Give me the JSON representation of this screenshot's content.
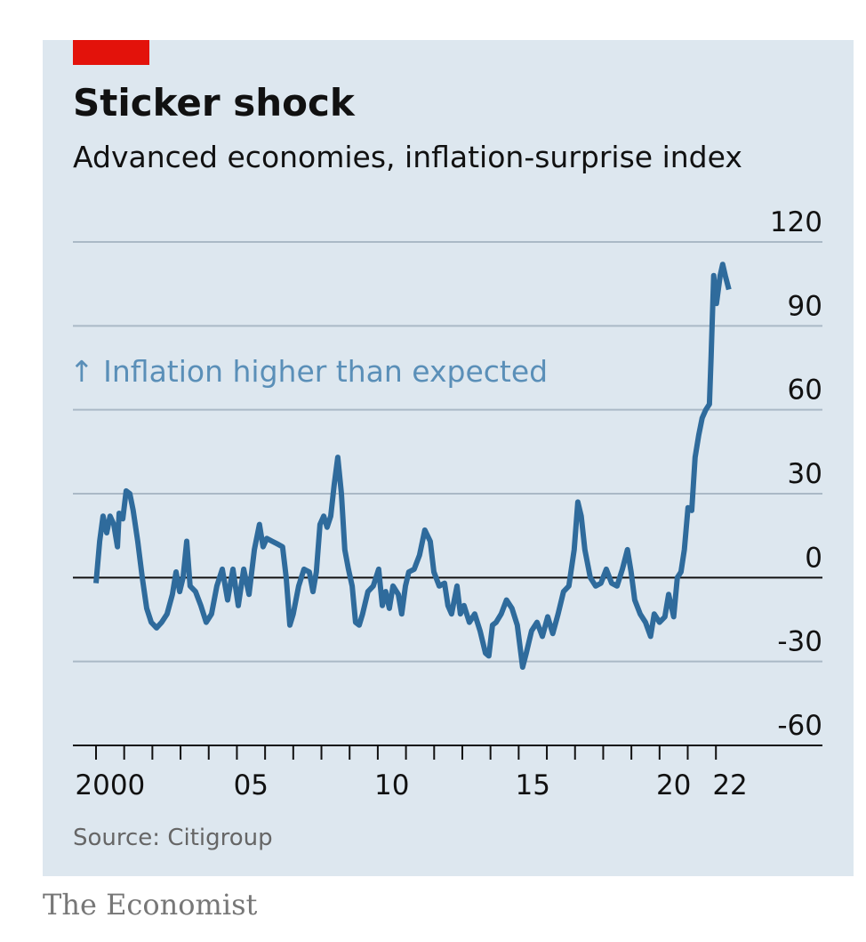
{
  "chart_data": {
    "type": "line",
    "title": "Sticker shock",
    "subtitle": "Advanced economies, inflation-surprise index",
    "annotation": "↑ Inflation higher than expected",
    "source": "Source: Citigroup",
    "footer": "The Economist",
    "xlim": [
      1999.18,
      2025.78
    ],
    "xticks": [
      {
        "value": 2000,
        "label": "2000"
      },
      {
        "value": 2001,
        "label": null
      },
      {
        "value": 2002,
        "label": null
      },
      {
        "value": 2003,
        "label": null
      },
      {
        "value": 2004,
        "label": null
      },
      {
        "value": 2005,
        "label": "05"
      },
      {
        "value": 2006,
        "label": null
      },
      {
        "value": 2007,
        "label": null
      },
      {
        "value": 2008,
        "label": null
      },
      {
        "value": 2009,
        "label": null
      },
      {
        "value": 2010,
        "label": "10"
      },
      {
        "value": 2011,
        "label": null
      },
      {
        "value": 2012,
        "label": null
      },
      {
        "value": 2013,
        "label": null
      },
      {
        "value": 2014,
        "label": null
      },
      {
        "value": 2015,
        "label": "15"
      },
      {
        "value": 2016,
        "label": null
      },
      {
        "value": 2017,
        "label": null
      },
      {
        "value": 2018,
        "label": null
      },
      {
        "value": 2019,
        "label": null
      },
      {
        "value": 2020,
        "label": "20"
      },
      {
        "value": 2021,
        "label": null
      },
      {
        "value": 2022,
        "label": "22"
      }
    ],
    "ylim": [
      -60,
      120
    ],
    "yticks": [
      -60,
      -30,
      0,
      30,
      60,
      90,
      120
    ],
    "grid": true,
    "x": [
      2000.0,
      2000.13,
      2000.25,
      2000.38,
      2000.5,
      2000.63,
      2000.76,
      2000.82,
      2000.95,
      2001.07,
      2001.2,
      2001.32,
      2001.48,
      2001.64,
      2001.8,
      2001.96,
      2002.15,
      2002.33,
      2002.52,
      2002.71,
      2002.84,
      2002.97,
      2003.09,
      2003.22,
      2003.34,
      2003.53,
      2003.72,
      2003.91,
      2004.1,
      2004.29,
      2004.48,
      2004.67,
      2004.86,
      2005.05,
      2005.24,
      2005.43,
      2005.62,
      2005.8,
      2005.93,
      2006.06,
      2006.25,
      2006.44,
      2006.62,
      2006.75,
      2006.88,
      2007.0,
      2007.19,
      2007.38,
      2007.57,
      2007.7,
      2007.82,
      2007.95,
      2008.08,
      2008.2,
      2008.33,
      2008.45,
      2008.58,
      2008.71,
      2008.83,
      2008.96,
      2009.09,
      2009.21,
      2009.34,
      2009.46,
      2009.65,
      2009.84,
      2010.03,
      2010.16,
      2010.28,
      2010.41,
      2010.54,
      2010.73,
      2010.85,
      2010.98,
      2011.1,
      2011.29,
      2011.48,
      2011.67,
      2011.86,
      2011.99,
      2012.18,
      2012.37,
      2012.49,
      2012.62,
      2012.81,
      2012.93,
      2013.06,
      2013.25,
      2013.44,
      2013.63,
      2013.82,
      2013.94,
      2014.07,
      2014.2,
      2014.38,
      2014.57,
      2014.76,
      2014.95,
      2015.14,
      2015.27,
      2015.46,
      2015.65,
      2015.84,
      2016.03,
      2016.21,
      2016.4,
      2016.59,
      2016.78,
      2016.97,
      2017.1,
      2017.22,
      2017.35,
      2017.54,
      2017.73,
      2017.92,
      2018.11,
      2018.3,
      2018.49,
      2018.68,
      2018.86,
      2018.99,
      2019.12,
      2019.31,
      2019.5,
      2019.68,
      2019.81,
      2020.0,
      2020.19,
      2020.32,
      2020.5,
      2020.63,
      2020.76,
      2020.88,
      2021.01,
      2021.14,
      2021.26,
      2021.39,
      2021.51,
      2021.64,
      2021.77,
      2021.83,
      2021.92,
      2022.02,
      2022.15,
      2022.24,
      2022.33,
      2022.46
    ],
    "series": [
      {
        "name": "Inflation-surprise index",
        "color": "#2f6b9c",
        "values": [
          -2,
          13,
          22,
          16,
          22,
          19,
          11,
          23,
          21,
          31,
          30,
          24,
          13,
          0,
          -11,
          -16,
          -18,
          -16,
          -13,
          -6,
          2,
          -5,
          0,
          13,
          -3,
          -5,
          -10,
          -16,
          -13,
          -3,
          3,
          -8,
          3,
          -10,
          3,
          -6,
          10,
          19,
          11,
          14,
          13,
          12,
          11,
          0,
          -17,
          -13,
          -3,
          3,
          2,
          -5,
          2,
          19,
          22,
          18,
          22,
          33,
          43,
          30,
          10,
          3,
          -3,
          -16,
          -17,
          -13,
          -5,
          -3,
          3,
          -10,
          -5,
          -11,
          -3,
          -6,
          -13,
          -3,
          2,
          3,
          8,
          17,
          13,
          2,
          -3,
          -2,
          -10,
          -13,
          -3,
          -13,
          -10,
          -16,
          -13,
          -19,
          -27,
          -28,
          -17,
          -16,
          -13,
          -8,
          -11,
          -17,
          -32,
          -27,
          -19,
          -16,
          -21,
          -14,
          -20,
          -13,
          -5,
          -3,
          10,
          27,
          22,
          10,
          0,
          -3,
          -2,
          3,
          -2,
          -3,
          3,
          10,
          2,
          -8,
          -13,
          -16,
          -21,
          -13,
          -16,
          -14,
          -6,
          -14,
          0,
          2,
          10,
          25,
          24,
          43,
          51,
          57,
          60,
          62,
          79,
          108,
          98,
          108,
          112,
          108,
          103
        ]
      }
    ]
  }
}
